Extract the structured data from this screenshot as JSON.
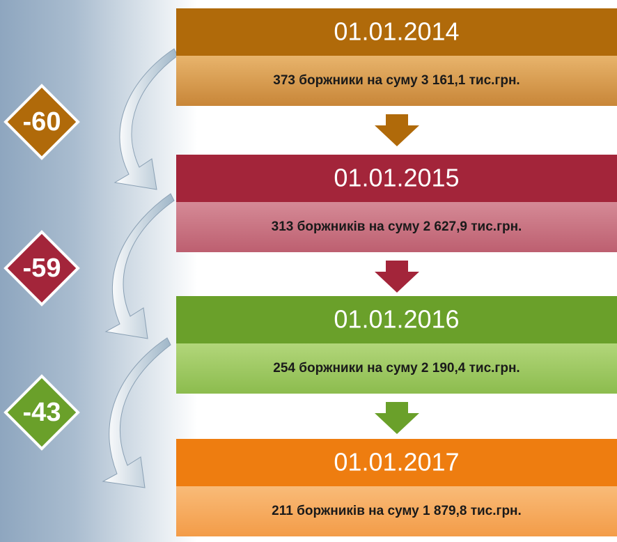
{
  "stages": [
    {
      "date": "01.01.2014",
      "text": "373 боржники на суму 3 161,1 тис.грн."
    },
    {
      "date": "01.01.2015",
      "text": "313 боржників на суму 2 627,9 тис.грн."
    },
    {
      "date": "01.01.2016",
      "text": "254 боржники на суму 2 190,4 тис.грн."
    },
    {
      "date": "01.01.2017",
      "text": "211 боржників на суму 1 879,8  тис.грн."
    }
  ],
  "changes": [
    "-60",
    "-59",
    "-43"
  ]
}
